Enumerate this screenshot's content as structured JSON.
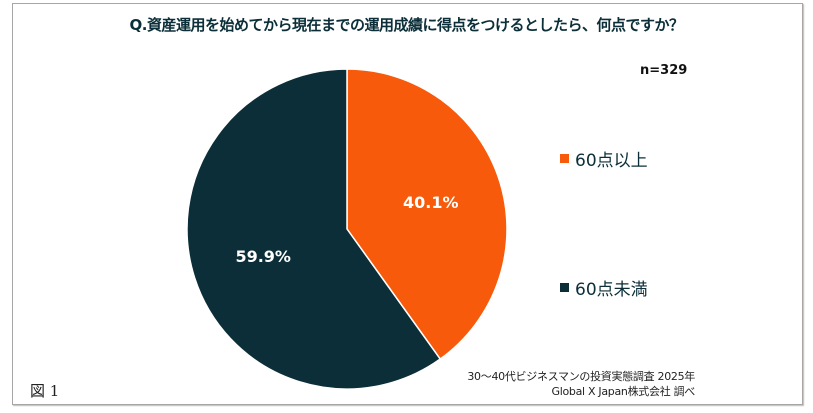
{
  "chart_data": {
    "type": "pie",
    "title": "Q.資産運用を始めてから現在までの運用成績に得点をつけるとしたら、何点ですか？",
    "annotation": "n=329",
    "categories": [
      "60点以上",
      "60点未満"
    ],
    "values": [
      40.1,
      59.9
    ],
    "data_labels": [
      "40.1%",
      "59.9%"
    ],
    "colors": [
      "#f75a0a",
      "#0b2e38"
    ],
    "start": "12 o'clock, clockwise",
    "legend_placement": "right"
  },
  "source": [
    "30～40代ビジネスマンの投資実態調査 2025年",
    "Global X Japan株式会社 調べ"
  ],
  "figure_label": "図 1"
}
